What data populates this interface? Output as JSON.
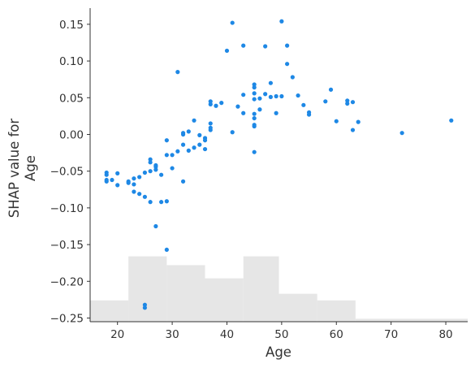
{
  "chart_data": {
    "type": "scatter",
    "title": "",
    "xlabel": "Age",
    "ylabel_lines": [
      "SHAP value for",
      "Age"
    ],
    "xlim": [
      15,
      84
    ],
    "ylim": [
      -0.255,
      0.172
    ],
    "x_ticks": [
      20,
      30,
      40,
      50,
      60,
      70,
      80
    ],
    "y_ticks": [
      -0.25,
      -0.2,
      -0.15,
      -0.1,
      -0.05,
      0.0,
      0.05,
      0.1,
      0.15
    ],
    "y_tick_labels": [
      "−0.25",
      "−0.20",
      "−0.15",
      "−0.10",
      "−0.05",
      "0.00",
      "0.05",
      "0.10",
      "0.15"
    ],
    "point_color": "#1e88e5",
    "histogram_color": "#e6e6e6",
    "histogram_baseline": -0.255,
    "histogram": [
      {
        "x0": 15,
        "x1": 22,
        "top": -0.226
      },
      {
        "x0": 22,
        "x1": 29,
        "top": -0.166
      },
      {
        "x0": 29,
        "x1": 36,
        "top": -0.178
      },
      {
        "x0": 36,
        "x1": 43,
        "top": -0.196
      },
      {
        "x0": 43,
        "x1": 49.5,
        "top": -0.166
      },
      {
        "x0": 49.5,
        "x1": 56.5,
        "top": -0.217
      },
      {
        "x0": 56.5,
        "x1": 63.5,
        "top": -0.226
      },
      {
        "x0": 63.5,
        "x1": 84,
        "top": -0.251
      }
    ],
    "points": [
      [
        18,
        -0.052
      ],
      [
        18,
        -0.055
      ],
      [
        18,
        -0.062
      ],
      [
        18,
        -0.064
      ],
      [
        19,
        -0.062
      ],
      [
        20,
        -0.053
      ],
      [
        20,
        -0.069
      ],
      [
        22,
        -0.066
      ],
      [
        22,
        -0.064
      ],
      [
        23,
        -0.06
      ],
      [
        23,
        -0.078
      ],
      [
        23,
        -0.068
      ],
      [
        24,
        -0.058
      ],
      [
        24,
        -0.081
      ],
      [
        25,
        -0.052
      ],
      [
        25,
        -0.085
      ],
      [
        25,
        -0.232
      ],
      [
        25,
        -0.236
      ],
      [
        26,
        -0.034
      ],
      [
        26,
        -0.038
      ],
      [
        26,
        -0.05
      ],
      [
        26,
        -0.092
      ],
      [
        27,
        -0.042
      ],
      [
        27,
        -0.044
      ],
      [
        27,
        -0.048
      ],
      [
        27,
        -0.125
      ],
      [
        28,
        -0.055
      ],
      [
        28,
        -0.092
      ],
      [
        29,
        -0.008
      ],
      [
        29,
        -0.028
      ],
      [
        29,
        -0.091
      ],
      [
        29,
        -0.157
      ],
      [
        30,
        -0.028
      ],
      [
        30,
        -0.046
      ],
      [
        31,
        0.085
      ],
      [
        31,
        -0.023
      ],
      [
        32,
        0.002
      ],
      [
        32,
        0.0
      ],
      [
        32,
        -0.014
      ],
      [
        32,
        -0.064
      ],
      [
        33,
        0.004
      ],
      [
        33,
        -0.022
      ],
      [
        34,
        0.019
      ],
      [
        34,
        -0.018
      ],
      [
        35,
        -0.001
      ],
      [
        35,
        -0.014
      ],
      [
        36,
        -0.005
      ],
      [
        36,
        -0.008
      ],
      [
        36,
        -0.02
      ],
      [
        37,
        0.045
      ],
      [
        37,
        0.041
      ],
      [
        37,
        0.015
      ],
      [
        37,
        0.009
      ],
      [
        37,
        0.006
      ],
      [
        38,
        0.039
      ],
      [
        39,
        0.043
      ],
      [
        40,
        0.114
      ],
      [
        41,
        0.152
      ],
      [
        41,
        0.003
      ],
      [
        42,
        0.038
      ],
      [
        43,
        0.121
      ],
      [
        43,
        0.054
      ],
      [
        43,
        0.029
      ],
      [
        45,
        0.068
      ],
      [
        45,
        0.064
      ],
      [
        45,
        0.056
      ],
      [
        45,
        0.048
      ],
      [
        45,
        0.028
      ],
      [
        45,
        0.022
      ],
      [
        45,
        0.013
      ],
      [
        45,
        0.011
      ],
      [
        45,
        -0.024
      ],
      [
        46,
        0.049
      ],
      [
        46,
        0.034
      ],
      [
        47,
        0.12
      ],
      [
        47,
        0.055
      ],
      [
        48,
        0.07
      ],
      [
        48,
        0.051
      ],
      [
        49,
        0.052
      ],
      [
        49,
        0.029
      ],
      [
        50,
        0.154
      ],
      [
        50,
        0.052
      ],
      [
        51,
        0.121
      ],
      [
        51,
        0.096
      ],
      [
        52,
        0.078
      ],
      [
        53,
        0.053
      ],
      [
        54,
        0.04
      ],
      [
        55,
        0.03
      ],
      [
        55,
        0.027
      ],
      [
        58,
        0.045
      ],
      [
        59,
        0.061
      ],
      [
        60,
        0.018
      ],
      [
        62,
        0.046
      ],
      [
        62,
        0.042
      ],
      [
        63,
        0.044
      ],
      [
        63,
        0.006
      ],
      [
        64,
        0.017
      ],
      [
        72,
        0.002
      ],
      [
        81,
        0.019
      ]
    ]
  }
}
